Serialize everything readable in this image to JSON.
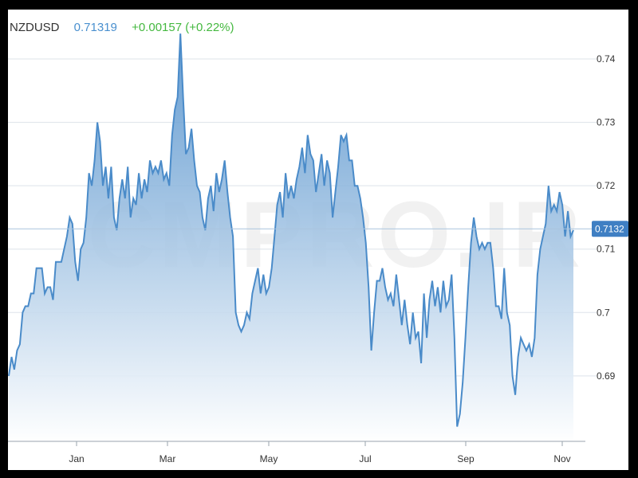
{
  "header": {
    "symbol": "NZDUSD",
    "last_price": "0.71319",
    "change": "+0.00157 (+0.22%)"
  },
  "watermark": "CMPRO.IR",
  "colors": {
    "line": "#4a8bc9",
    "fill_top": "#4a8bc9",
    "fill_bottom": "#ffffff",
    "grid": "#dde3ea",
    "price_label_bg": "#3f7fc3",
    "change_positive": "#44b83f"
  },
  "chart_data": {
    "type": "area",
    "title": "",
    "xlabel": "",
    "ylabel": "",
    "x_tick_labels": [
      "Jan",
      "Mar",
      "May",
      "Jul",
      "Sep",
      "Nov"
    ],
    "y_tick_labels": [
      "0.69",
      "0.7",
      "0.71",
      "0.72",
      "0.73",
      "0.74"
    ],
    "ylim": [
      0.6793,
      0.7478
    ],
    "current_price_label": "0.7132",
    "current_price": 0.7132,
    "grid": true,
    "series": [
      {
        "values": [
          0.69,
          0.693,
          0.691,
          0.694,
          0.695,
          0.7,
          0.701,
          0.701,
          0.703,
          0.703,
          0.707,
          0.707,
          0.707,
          0.703,
          0.704,
          0.704,
          0.702,
          0.708,
          0.708,
          0.708,
          0.71,
          0.712,
          0.715,
          0.714,
          0.708,
          0.705,
          0.71,
          0.711,
          0.715,
          0.722,
          0.72,
          0.724,
          0.73,
          0.727,
          0.72,
          0.723,
          0.718,
          0.723,
          0.715,
          0.713,
          0.718,
          0.721,
          0.718,
          0.723,
          0.715,
          0.718,
          0.717,
          0.722,
          0.718,
          0.721,
          0.719,
          0.724,
          0.722,
          0.723,
          0.722,
          0.724,
          0.721,
          0.722,
          0.72,
          0.728,
          0.732,
          0.734,
          0.744,
          0.734,
          0.725,
          0.726,
          0.729,
          0.724,
          0.72,
          0.719,
          0.715,
          0.713,
          0.718,
          0.72,
          0.716,
          0.722,
          0.719,
          0.721,
          0.724,
          0.719,
          0.715,
          0.712,
          0.7,
          0.698,
          0.697,
          0.698,
          0.7,
          0.699,
          0.703,
          0.705,
          0.707,
          0.703,
          0.706,
          0.703,
          0.704,
          0.707,
          0.712,
          0.717,
          0.719,
          0.715,
          0.722,
          0.718,
          0.72,
          0.718,
          0.721,
          0.723,
          0.726,
          0.722,
          0.728,
          0.725,
          0.724,
          0.719,
          0.722,
          0.725,
          0.72,
          0.724,
          0.722,
          0.715,
          0.719,
          0.723,
          0.728,
          0.727,
          0.728,
          0.724,
          0.724,
          0.72,
          0.72,
          0.718,
          0.715,
          0.711,
          0.704,
          0.694,
          0.7,
          0.705,
          0.705,
          0.707,
          0.704,
          0.702,
          0.703,
          0.701,
          0.706,
          0.702,
          0.698,
          0.702,
          0.698,
          0.695,
          0.7,
          0.696,
          0.697,
          0.692,
          0.703,
          0.696,
          0.702,
          0.705,
          0.701,
          0.704,
          0.7,
          0.705,
          0.701,
          0.702,
          0.706,
          0.696,
          0.682,
          0.684,
          0.689,
          0.696,
          0.704,
          0.711,
          0.715,
          0.712,
          0.71,
          0.711,
          0.71,
          0.711,
          0.711,
          0.707,
          0.701,
          0.701,
          0.699,
          0.707,
          0.7,
          0.698,
          0.69,
          0.687,
          0.693,
          0.696,
          0.695,
          0.694,
          0.695,
          0.693,
          0.696,
          0.706,
          0.71,
          0.712,
          0.714,
          0.72,
          0.716,
          0.717,
          0.716,
          0.719,
          0.717,
          0.712,
          0.716,
          0.712,
          0.713
        ]
      }
    ]
  }
}
